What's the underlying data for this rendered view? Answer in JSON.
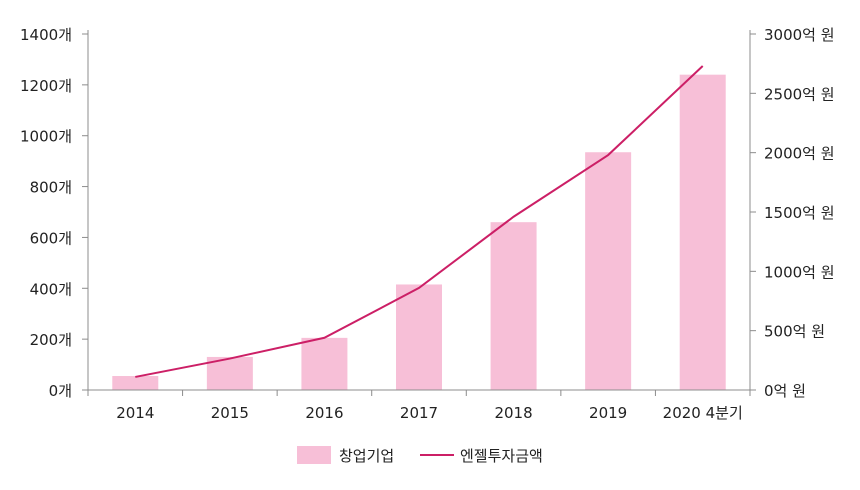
{
  "chart_data": {
    "type": "bar",
    "categories": [
      "2014",
      "2015",
      "2016",
      "2017",
      "2018",
      "2019",
      "2020 4분기"
    ],
    "series": [
      {
        "name": "창업기업",
        "type": "bar",
        "axis": "left",
        "color": "#f7bfd7",
        "values": [
          55,
          130,
          205,
          415,
          660,
          935,
          1240
        ]
      },
      {
        "name": "엔젤투자금액",
        "type": "line",
        "axis": "right",
        "color": "#cc1f66",
        "values": [
          110,
          265,
          440,
          860,
          1460,
          1980,
          2730
        ]
      }
    ],
    "y_left": {
      "ylim": [
        0,
        1400
      ],
      "ticks": [
        "0개",
        "200개",
        "400개",
        "600개",
        "800개",
        "1000개",
        "1200개",
        "1400개"
      ]
    },
    "y_right": {
      "ylim": [
        0,
        3000
      ],
      "ticks": [
        "0억 원",
        "500억 원",
        "1000억 원",
        "1500억 원",
        "2000억 원",
        "2500억 원",
        "3000억 원"
      ]
    },
    "grid": false,
    "legend": "bottom-center"
  }
}
